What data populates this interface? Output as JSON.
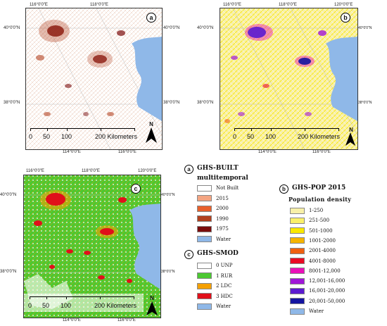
{
  "panels": {
    "a": {
      "label": "a",
      "top_ticks": [
        "116°0'0\"E",
        "118°0'0\"E"
      ],
      "bottom_ticks": [
        "114°0'0\"E",
        "116°0'0\"E"
      ],
      "left_ticks": [
        "40°0'0\"N",
        "38°0'0\"N"
      ],
      "right_ticks": [
        "40°0'0\"N",
        "38°0'0\"N"
      ],
      "scale_labels": [
        "0",
        "50",
        "100",
        "200 Kilometers"
      ],
      "north": "N"
    },
    "b": {
      "label": "b",
      "top_ticks": [
        "116°0'0\"E",
        "118°0'0\"E",
        "120°0'0\"E"
      ],
      "bottom_ticks": [
        "114°0'0\"E",
        "116°0'0\"E"
      ],
      "left_ticks": [
        "40°0'0\"N",
        "38°0'0\"N"
      ],
      "right_ticks": [
        "40°0'0\"N",
        "38°0'0\"N"
      ],
      "scale_labels": [
        "0",
        "50",
        "100",
        "200 Kilometers"
      ],
      "north": "N"
    },
    "c": {
      "label": "c",
      "top_ticks": [
        "116°0'0\"E",
        "118°0'0\"E",
        "120°0'0\"E"
      ],
      "bottom_ticks": [
        "114°0'0\"E",
        "116°0'0\"E"
      ],
      "left_ticks": [
        "40°0'0\"N",
        "38°0'0\"N"
      ],
      "right_ticks": [
        "40°0'0\"N",
        "38°0'0\"N"
      ],
      "scale_labels": [
        "0",
        "50",
        "100",
        "200 Kilometers"
      ],
      "north": "N"
    }
  },
  "legend_a": {
    "marker": "a",
    "title": "GHS-BUILT",
    "subtitle": "multitemporal",
    "items": [
      {
        "label": "Not Built",
        "color": "#ffffff"
      },
      {
        "label": "2015",
        "color": "#f4a582"
      },
      {
        "label": "2000",
        "color": "#e8602c"
      },
      {
        "label": "1990",
        "color": "#b2401e"
      },
      {
        "label": "1975",
        "color": "#7a0c0c"
      },
      {
        "label": "Water",
        "color": "#8fb8e8"
      }
    ]
  },
  "legend_c": {
    "marker": "c",
    "title": "GHS-SMOD",
    "items": [
      {
        "label": "0  UNP",
        "color": "#ffffff"
      },
      {
        "label": "1  RUR",
        "color": "#4cc832"
      },
      {
        "label": "2  LDC",
        "color": "#f5a000"
      },
      {
        "label": "3  HDC",
        "color": "#e0101a"
      },
      {
        "label": "Water",
        "color": "#8fb8e8"
      }
    ]
  },
  "legend_b": {
    "marker": "b",
    "title": "GHS-POP 2015",
    "subtitle": "Population density",
    "items": [
      {
        "label": "1-250",
        "color": "#f8f0a8"
      },
      {
        "label": "251-500",
        "color": "#faf06a"
      },
      {
        "label": "501-1000",
        "color": "#fae800"
      },
      {
        "label": "1001-2000",
        "color": "#f5b400"
      },
      {
        "label": "2001-4000",
        "color": "#f06010"
      },
      {
        "label": "4001-8000",
        "color": "#ea0a24"
      },
      {
        "label": "8001-12,000",
        "color": "#ea10b8"
      },
      {
        "label": "12,001-16,000",
        "color": "#a016d8"
      },
      {
        "label": "16,001-20,000",
        "color": "#5b1ad0"
      },
      {
        "label": "20,001-50,000",
        "color": "#1414a0"
      },
      {
        "label": "Water",
        "color": "#8fb8e8"
      }
    ]
  }
}
